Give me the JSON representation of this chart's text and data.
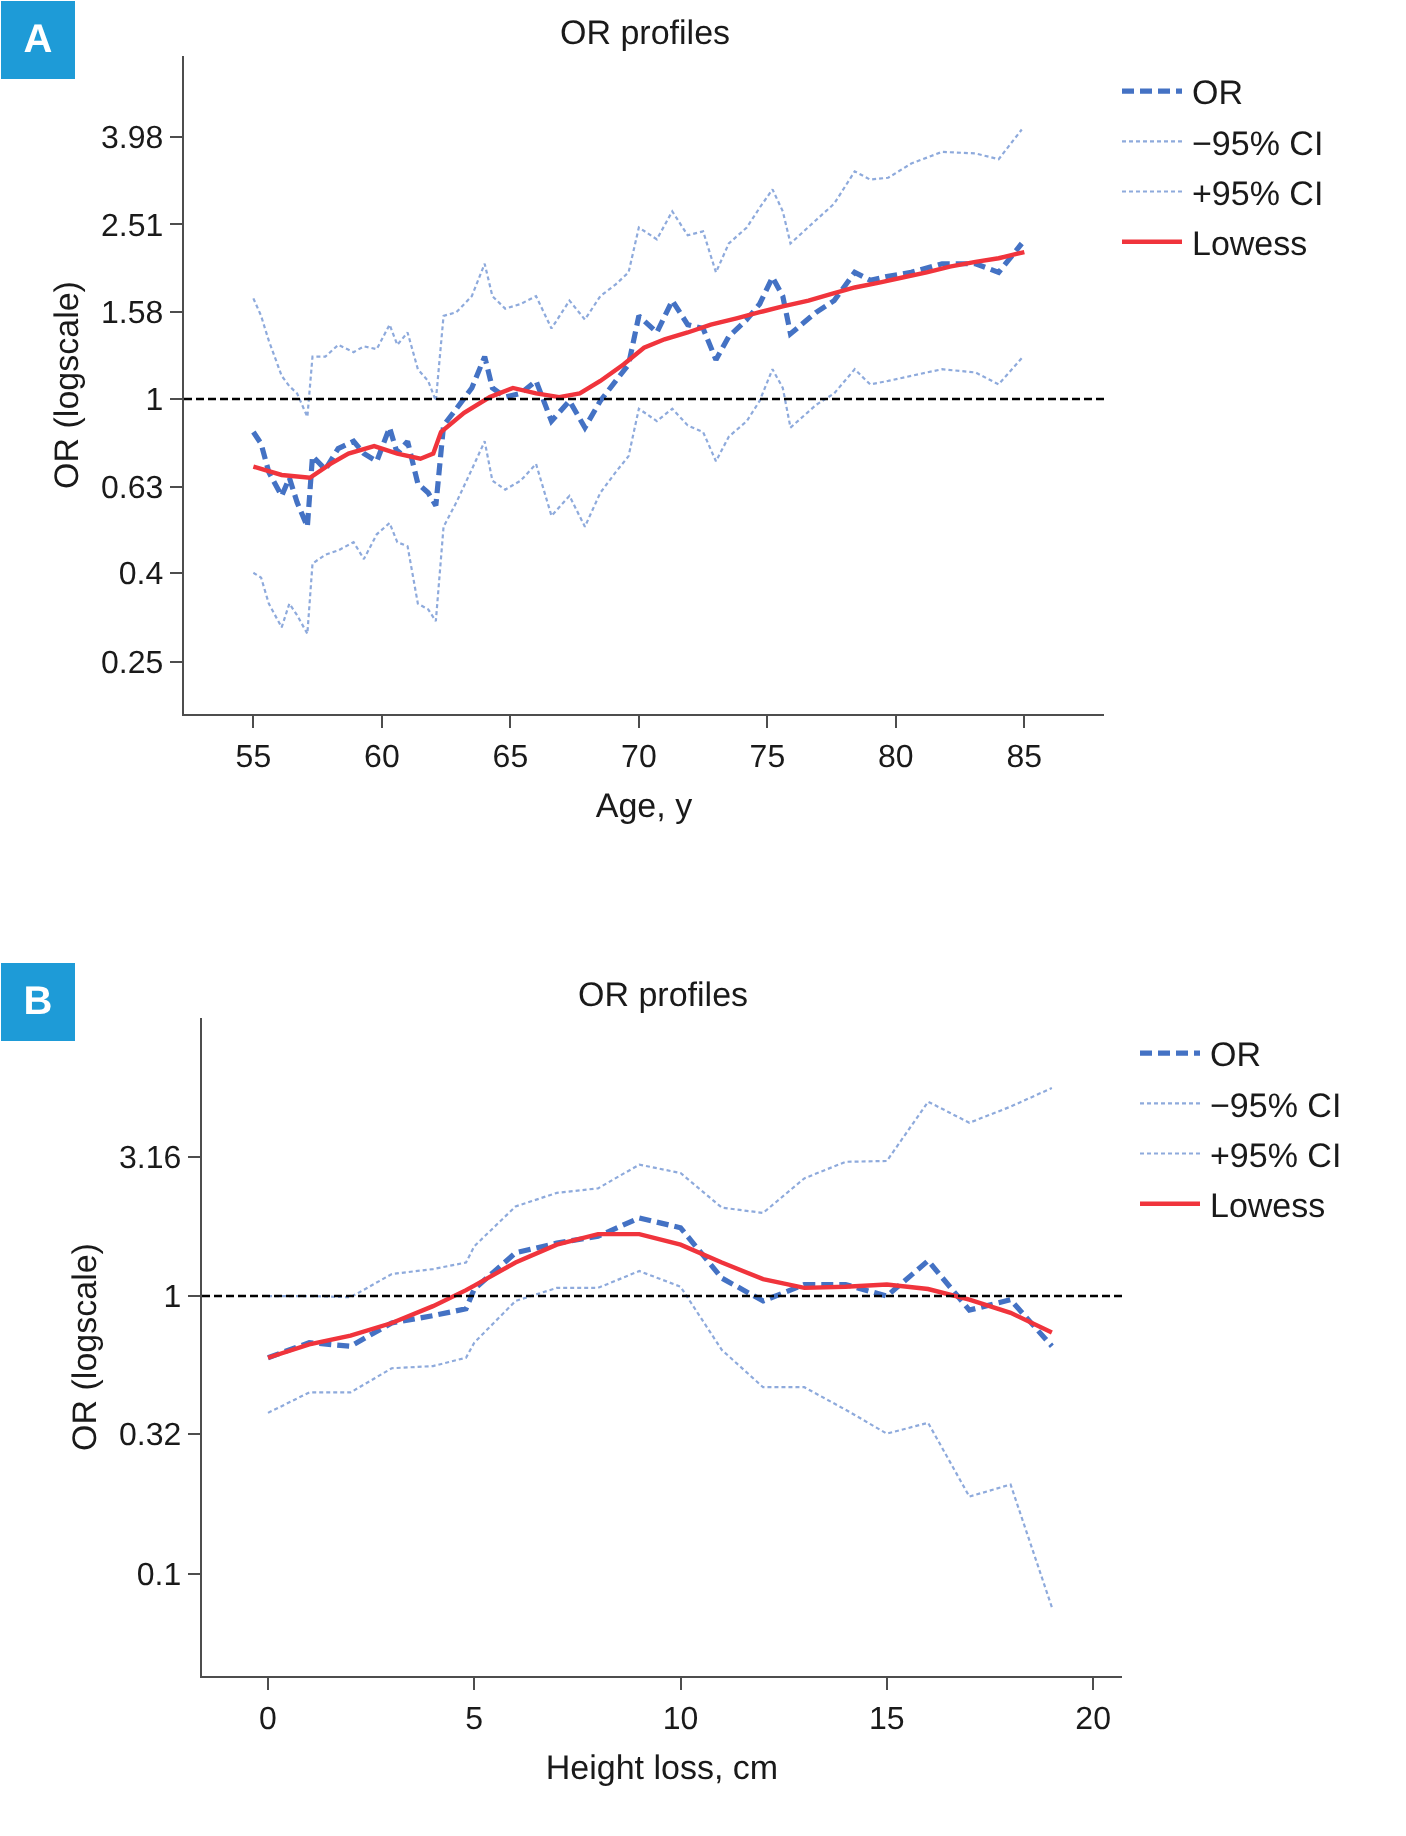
{
  "chart_data": [
    {
      "type": "line",
      "title": "OR profiles",
      "xlabel": "Age, y",
      "ylabel": "OR (logscale)",
      "annotations": [
        "A"
      ],
      "log": "y",
      "legend": "top right",
      "xlim": [
        52.3,
        88.1
      ],
      "xticks": [
        55,
        60,
        65,
        70,
        75,
        80,
        85
      ],
      "ylim": [
        0.19,
        6.1
      ],
      "yticks": [
        0.25,
        0.4,
        0.63,
        1,
        1.58,
        2.51,
        3.98
      ],
      "ref_lines": [
        {
          "axis": "y",
          "value": 1,
          "color": "#000000",
          "line_style": "dashed"
        }
      ],
      "x": [
        55.0,
        55.3,
        55.6,
        56.1,
        56.4,
        56.7,
        57.1,
        57.3,
        57.8,
        58.3,
        58.9,
        59.3,
        59.8,
        60.3,
        60.6,
        61.0,
        61.4,
        61.8,
        62.1,
        62.4,
        62.9,
        63.5,
        64.0,
        64.3,
        64.8,
        65.4,
        66.0,
        66.6,
        67.3,
        67.9,
        68.5,
        69.1,
        69.6,
        70.0,
        70.7,
        71.3,
        71.9,
        72.5,
        73.0,
        73.5,
        74.2,
        74.7,
        75.2,
        75.6,
        75.9,
        76.9,
        77.6,
        78.4,
        79.0,
        79.7,
        80.6,
        81.8,
        83.1,
        84.0,
        84.9
      ],
      "series": [
        {
          "name": "OR",
          "color": "#4472c4",
          "line_style": "dashed",
          "values": [
            0.84,
            0.79,
            0.68,
            0.6,
            0.66,
            0.58,
            0.51,
            0.74,
            0.69,
            0.77,
            0.8,
            0.75,
            0.72,
            0.86,
            0.75,
            0.8,
            0.64,
            0.61,
            0.57,
            0.87,
            0.95,
            1.06,
            1.25,
            1.06,
            1.01,
            1.03,
            1.1,
            0.89,
            0.99,
            0.86,
            0.99,
            1.1,
            1.2,
            1.55,
            1.42,
            1.68,
            1.48,
            1.45,
            1.23,
            1.39,
            1.52,
            1.65,
            1.9,
            1.72,
            1.41,
            1.58,
            1.68,
            1.95,
            1.87,
            1.91,
            1.95,
            2.04,
            2.04,
            1.95,
            2.27
          ]
        },
        {
          "name": "−95% CI",
          "color": "#8eaadc",
          "line_style": "dotted",
          "values": [
            0.4,
            0.39,
            0.34,
            0.3,
            0.34,
            0.32,
            0.29,
            0.42,
            0.44,
            0.45,
            0.47,
            0.43,
            0.49,
            0.52,
            0.47,
            0.46,
            0.34,
            0.33,
            0.31,
            0.51,
            0.58,
            0.69,
            0.8,
            0.65,
            0.62,
            0.65,
            0.71,
            0.54,
            0.6,
            0.51,
            0.61,
            0.68,
            0.74,
            0.95,
            0.89,
            0.95,
            0.87,
            0.84,
            0.72,
            0.82,
            0.89,
            0.99,
            1.17,
            1.06,
            0.86,
            0.97,
            1.03,
            1.17,
            1.08,
            1.1,
            1.13,
            1.17,
            1.15,
            1.08,
            1.24
          ]
        },
        {
          "name": "+95% CI",
          "color": "#8eaadc",
          "line_style": "dotted",
          "values": [
            1.7,
            1.55,
            1.36,
            1.13,
            1.07,
            1.03,
            0.91,
            1.25,
            1.25,
            1.33,
            1.28,
            1.32,
            1.3,
            1.48,
            1.33,
            1.42,
            1.17,
            1.1,
            0.99,
            1.55,
            1.58,
            1.72,
            2.04,
            1.72,
            1.61,
            1.65,
            1.72,
            1.45,
            1.68,
            1.52,
            1.72,
            1.83,
            1.95,
            2.47,
            2.32,
            2.69,
            2.37,
            2.42,
            1.95,
            2.27,
            2.47,
            2.74,
            3.02,
            2.69,
            2.27,
            2.57,
            2.8,
            3.32,
            3.18,
            3.21,
            3.46,
            3.68,
            3.65,
            3.54,
            4.14
          ]
        },
        {
          "name": "Lowess",
          "color": "#f0343c",
          "line_style": "solid",
          "x": [
            55.0,
            56.1,
            57.2,
            58.0,
            58.7,
            59.7,
            60.6,
            61.5,
            62.0,
            62.3,
            63.2,
            64.2,
            65.1,
            66.0,
            66.9,
            67.7,
            68.5,
            69.4,
            70.2,
            71.0,
            71.9,
            72.8,
            73.8,
            74.7,
            75.6,
            76.6,
            77.5,
            78.4,
            79.4,
            80.3,
            81.2,
            82.1,
            83.1,
            84.0,
            85.0
          ],
          "values": [
            0.7,
            0.67,
            0.66,
            0.71,
            0.75,
            0.78,
            0.75,
            0.73,
            0.75,
            0.84,
            0.93,
            1.01,
            1.06,
            1.03,
            1.01,
            1.03,
            1.1,
            1.2,
            1.31,
            1.37,
            1.42,
            1.48,
            1.53,
            1.58,
            1.63,
            1.68,
            1.74,
            1.8,
            1.85,
            1.9,
            1.95,
            2.01,
            2.06,
            2.1,
            2.17
          ]
        }
      ]
    },
    {
      "type": "line",
      "title": "OR profiles",
      "xlabel": "Height loss, cm",
      "ylabel": "OR (logscale)",
      "annotations": [
        "B"
      ],
      "log": "y",
      "legend": "top right",
      "xlim": [
        -1.6,
        20.7
      ],
      "xticks": [
        0,
        5,
        10,
        15,
        20
      ],
      "ylim": [
        0.043,
        10
      ],
      "yticks": [
        0.1,
        0.32,
        1,
        3.16
      ],
      "ref_lines": [
        {
          "axis": "y",
          "value": 1,
          "color": "#000000",
          "line_style": "dashed"
        }
      ],
      "x": [
        0,
        1,
        2,
        3,
        4,
        4.8,
        5,
        6,
        7,
        8,
        9,
        10,
        11,
        12,
        13,
        14,
        15,
        16,
        17,
        18,
        19
      ],
      "series": [
        {
          "name": "OR",
          "color": "#4472c4",
          "line_style": "dashed",
          "values": [
            0.6,
            0.68,
            0.66,
            0.8,
            0.85,
            0.9,
            1.06,
            1.43,
            1.55,
            1.64,
            1.91,
            1.76,
            1.16,
            0.96,
            1.1,
            1.1,
            1.0,
            1.34,
            0.89,
            0.97,
            0.66
          ]
        },
        {
          "name": "−95% CI",
          "color": "#8eaadc",
          "line_style": "dotted",
          "values": [
            0.38,
            0.45,
            0.45,
            0.55,
            0.56,
            0.6,
            0.68,
            0.96,
            1.07,
            1.07,
            1.23,
            1.08,
            0.64,
            0.47,
            0.47,
            0.39,
            0.32,
            0.35,
            0.19,
            0.21,
            0.076
          ]
        },
        {
          "name": "+95% CI",
          "color": "#8eaadc",
          "line_style": "dotted",
          "values": [
            1.0,
            1.0,
            0.99,
            1.2,
            1.25,
            1.32,
            1.51,
            2.1,
            2.35,
            2.44,
            2.97,
            2.77,
            2.08,
            1.99,
            2.65,
            3.04,
            3.06,
            5.0,
            4.2,
            4.8,
            5.6
          ]
        },
        {
          "name": "Lowess",
          "color": "#f0343c",
          "line_style": "solid",
          "values": [
            0.6,
            0.67,
            0.72,
            0.8,
            0.92,
            1.05,
            1.09,
            1.32,
            1.53,
            1.67,
            1.67,
            1.53,
            1.32,
            1.15,
            1.07,
            1.08,
            1.1,
            1.06,
            0.97,
            0.87,
            0.74
          ]
        }
      ]
    }
  ]
}
